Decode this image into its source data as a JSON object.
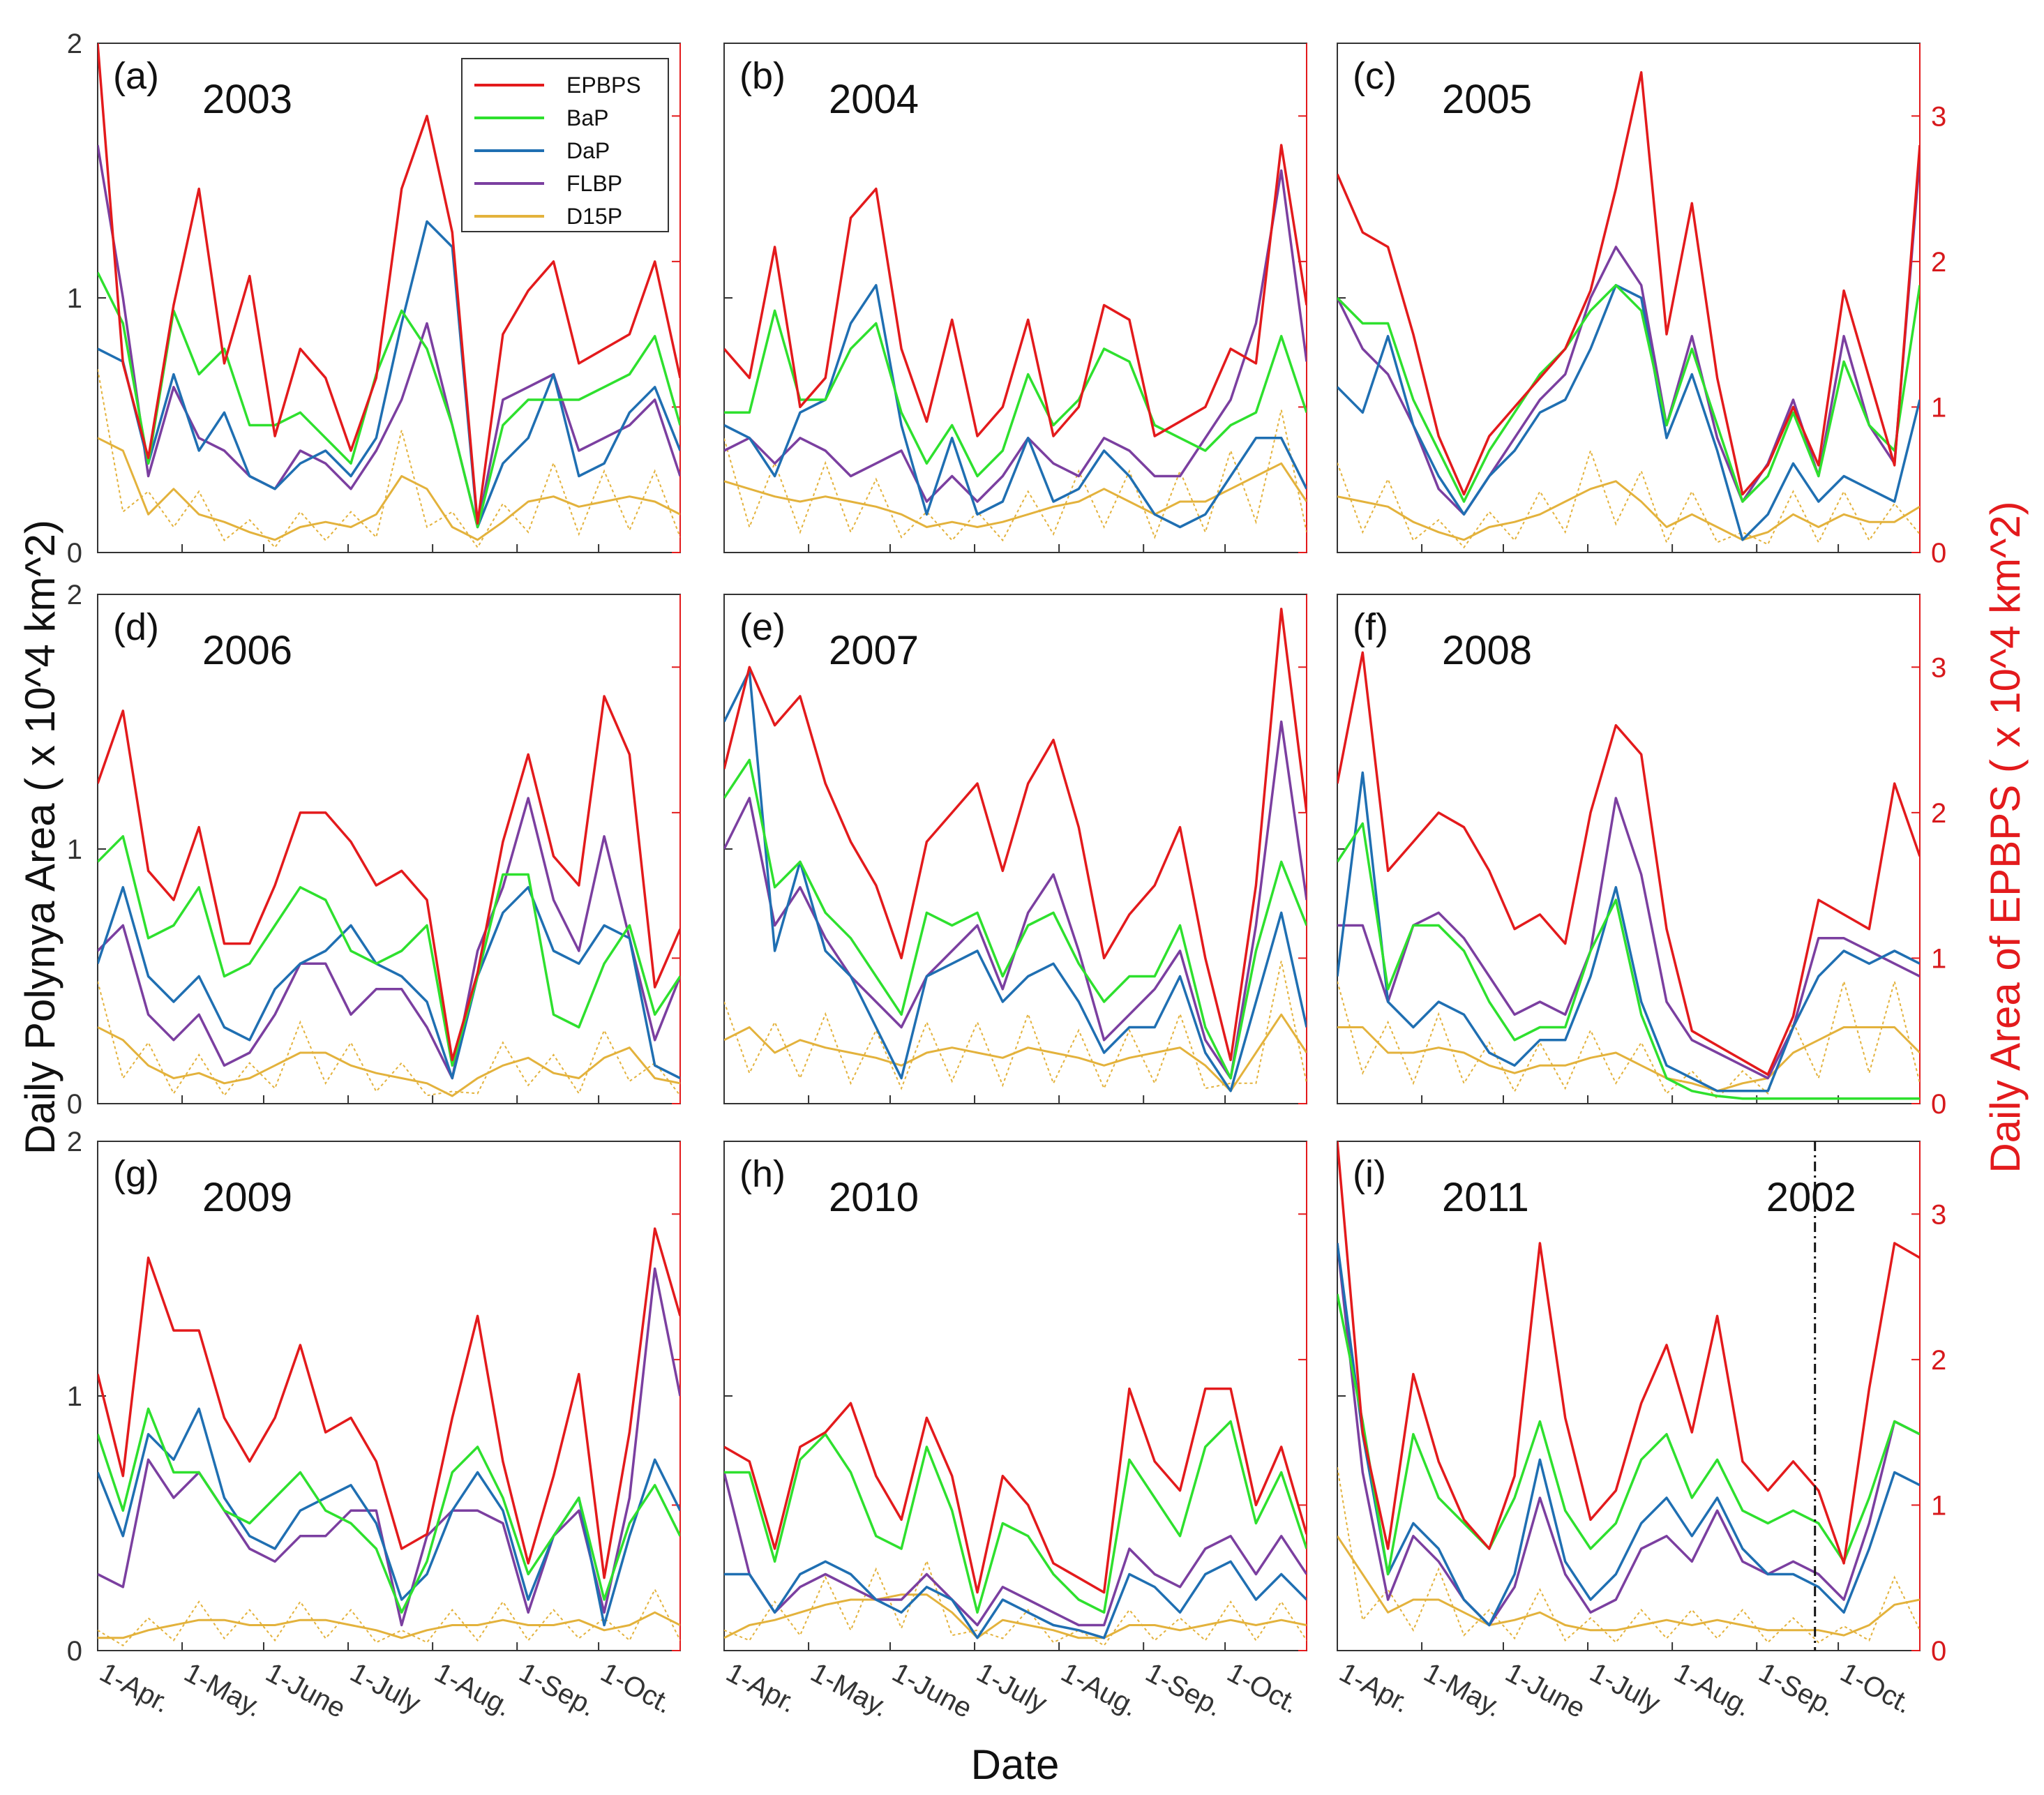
{
  "chart_data": {
    "type": "line",
    "ylabel_left": "Daily Polynya Area ( x 10^4 km^2)",
    "ylabel_right": "Daily Area of EPBPS ( x 10^4 km^2)",
    "xlabel": "Date",
    "ylim_left": [
      0,
      2
    ],
    "ylim_right": [
      0,
      3.5
    ],
    "yticks_left": [
      "0",
      "1",
      "2"
    ],
    "yticks_right": [
      "0",
      "1",
      "2",
      "3"
    ],
    "xtick_labels": [
      "1-Apr.",
      "1-May.",
      "1-June",
      "1-July",
      "1-Aug.",
      "1-Sep.",
      "1-Oct."
    ],
    "legend": [
      {
        "name": "EPBPS",
        "color": "#e31a1c"
      },
      {
        "name": "BaP",
        "color": "#2ee02e"
      },
      {
        "name": "DaP",
        "color": "#1f6fb2"
      },
      {
        "name": "FLBP",
        "color": "#7b3fa0"
      },
      {
        "name": "D15P",
        "color": "#e3b23c"
      }
    ],
    "colors": {
      "EPBPS": "#e31a1c",
      "BaP": "#2ee02e",
      "DaP": "#1f6fb2",
      "FLBP": "#7b3fa0",
      "D15P": "#e3b23c"
    },
    "note": "EPBPS plotted on right axis (x10^4 km^2); other series on left axis. Values sampled every ~10 days from 1 Apr to ~20 Oct.",
    "panels": [
      {
        "letter": "(a)",
        "year": "2003",
        "EPBPS": [
          3.5,
          1.3,
          0.65,
          1.7,
          2.5,
          1.3,
          1.9,
          0.8,
          1.4,
          1.2,
          0.7,
          1.2,
          2.5,
          3.0,
          2.2,
          0.2,
          1.5,
          1.8,
          2.0,
          1.3,
          1.4,
          1.5,
          2.0,
          1.2
        ],
        "BaP": [
          1.1,
          0.9,
          0.35,
          0.95,
          0.7,
          0.8,
          0.5,
          0.5,
          0.55,
          0.45,
          0.35,
          0.7,
          0.95,
          0.8,
          0.5,
          0.1,
          0.5,
          0.6,
          0.6,
          0.6,
          0.65,
          0.7,
          0.85,
          0.5
        ],
        "DaP": [
          0.8,
          0.75,
          0.35,
          0.7,
          0.4,
          0.55,
          0.3,
          0.25,
          0.35,
          0.4,
          0.3,
          0.45,
          0.9,
          1.3,
          1.2,
          0.1,
          0.35,
          0.45,
          0.7,
          0.3,
          0.35,
          0.55,
          0.65,
          0.4
        ],
        "FLBP": [
          1.6,
          1.0,
          0.3,
          0.65,
          0.45,
          0.4,
          0.3,
          0.25,
          0.4,
          0.35,
          0.25,
          0.4,
          0.6,
          0.9,
          0.5,
          0.1,
          0.6,
          0.65,
          0.7,
          0.4,
          0.45,
          0.5,
          0.6,
          0.3
        ],
        "D15P": [
          0.45,
          0.4,
          0.15,
          0.25,
          0.15,
          0.12,
          0.08,
          0.05,
          0.1,
          0.12,
          0.1,
          0.15,
          0.3,
          0.25,
          0.1,
          0.05,
          0.12,
          0.2,
          0.22,
          0.18,
          0.2,
          0.22,
          0.2,
          0.15
        ]
      },
      {
        "letter": "(b)",
        "year": "2004",
        "EPBPS": [
          1.4,
          1.2,
          2.1,
          1.0,
          1.2,
          2.3,
          2.5,
          1.4,
          0.9,
          1.6,
          0.8,
          1.0,
          1.6,
          0.8,
          1.0,
          1.7,
          1.6,
          0.8,
          0.9,
          1.0,
          1.4,
          1.3,
          2.8,
          1.7
        ],
        "BaP": [
          0.55,
          0.55,
          0.95,
          0.6,
          0.6,
          0.8,
          0.9,
          0.55,
          0.35,
          0.5,
          0.3,
          0.4,
          0.7,
          0.5,
          0.6,
          0.8,
          0.75,
          0.5,
          0.45,
          0.4,
          0.5,
          0.55,
          0.85,
          0.55
        ],
        "DaP": [
          0.5,
          0.45,
          0.3,
          0.55,
          0.6,
          0.9,
          1.05,
          0.5,
          0.15,
          0.45,
          0.15,
          0.2,
          0.45,
          0.2,
          0.25,
          0.4,
          0.3,
          0.15,
          0.1,
          0.15,
          0.3,
          0.45,
          0.45,
          0.25
        ],
        "FLBP": [
          0.4,
          0.45,
          0.35,
          0.45,
          0.4,
          0.3,
          0.35,
          0.4,
          0.2,
          0.3,
          0.2,
          0.3,
          0.45,
          0.35,
          0.3,
          0.45,
          0.4,
          0.3,
          0.3,
          0.45,
          0.6,
          0.9,
          1.5,
          0.75
        ],
        "D15P": [
          0.28,
          0.25,
          0.22,
          0.2,
          0.22,
          0.2,
          0.18,
          0.15,
          0.1,
          0.12,
          0.1,
          0.12,
          0.15,
          0.18,
          0.2,
          0.25,
          0.2,
          0.15,
          0.2,
          0.2,
          0.25,
          0.3,
          0.35,
          0.2
        ]
      },
      {
        "letter": "(c)",
        "year": "2005",
        "EPBPS": [
          2.6,
          2.2,
          2.1,
          1.5,
          0.8,
          0.4,
          0.8,
          1.0,
          1.2,
          1.4,
          1.8,
          2.5,
          3.3,
          1.5,
          2.4,
          1.2,
          0.4,
          0.6,
          1.0,
          0.6,
          1.8,
          1.2,
          0.6,
          2.8
        ],
        "BaP": [
          1.0,
          0.9,
          0.9,
          0.6,
          0.4,
          0.2,
          0.4,
          0.55,
          0.7,
          0.8,
          0.95,
          1.05,
          0.95,
          0.5,
          0.8,
          0.5,
          0.2,
          0.3,
          0.55,
          0.3,
          0.75,
          0.5,
          0.4,
          1.05
        ],
        "DaP": [
          0.65,
          0.55,
          0.85,
          0.5,
          0.3,
          0.15,
          0.3,
          0.4,
          0.55,
          0.6,
          0.8,
          1.05,
          1.0,
          0.45,
          0.7,
          0.4,
          0.05,
          0.15,
          0.35,
          0.2,
          0.3,
          0.25,
          0.2,
          0.6
        ],
        "FLBP": [
          1.0,
          0.8,
          0.7,
          0.5,
          0.25,
          0.15,
          0.3,
          0.45,
          0.6,
          0.7,
          1.0,
          1.2,
          1.05,
          0.5,
          0.85,
          0.45,
          0.2,
          0.35,
          0.6,
          0.3,
          0.85,
          0.5,
          0.35,
          1.55
        ],
        "D15P": [
          0.22,
          0.2,
          0.18,
          0.12,
          0.08,
          0.05,
          0.1,
          0.12,
          0.15,
          0.2,
          0.25,
          0.28,
          0.2,
          0.1,
          0.15,
          0.1,
          0.05,
          0.08,
          0.15,
          0.1,
          0.15,
          0.12,
          0.12,
          0.18
        ]
      },
      {
        "letter": "(d)",
        "year": "2006",
        "EPBPS": [
          2.2,
          2.7,
          1.6,
          1.4,
          1.9,
          1.1,
          1.1,
          1.5,
          2.0,
          2.0,
          1.8,
          1.5,
          1.6,
          1.4,
          0.3,
          0.9,
          1.8,
          2.4,
          1.7,
          1.5,
          2.8,
          2.4,
          0.8,
          1.2
        ],
        "BaP": [
          0.95,
          1.05,
          0.65,
          0.7,
          0.85,
          0.5,
          0.55,
          0.7,
          0.85,
          0.8,
          0.6,
          0.55,
          0.6,
          0.7,
          0.15,
          0.5,
          0.9,
          0.9,
          0.35,
          0.3,
          0.55,
          0.7,
          0.35,
          0.5
        ],
        "DaP": [
          0.55,
          0.85,
          0.5,
          0.4,
          0.5,
          0.3,
          0.25,
          0.45,
          0.55,
          0.6,
          0.7,
          0.55,
          0.5,
          0.4,
          0.1,
          0.5,
          0.75,
          0.85,
          0.6,
          0.55,
          0.7,
          0.65,
          0.15,
          0.1
        ],
        "FLBP": [
          0.6,
          0.7,
          0.35,
          0.25,
          0.35,
          0.15,
          0.2,
          0.35,
          0.55,
          0.55,
          0.35,
          0.45,
          0.45,
          0.3,
          0.1,
          0.6,
          0.85,
          1.2,
          0.8,
          0.6,
          1.05,
          0.65,
          0.25,
          0.5
        ],
        "D15P": [
          0.3,
          0.25,
          0.15,
          0.1,
          0.12,
          0.08,
          0.1,
          0.15,
          0.2,
          0.2,
          0.15,
          0.12,
          0.1,
          0.08,
          0.03,
          0.1,
          0.15,
          0.18,
          0.12,
          0.1,
          0.18,
          0.22,
          0.1,
          0.08
        ]
      },
      {
        "letter": "(e)",
        "year": "2007",
        "EPBPS": [
          2.3,
          3.0,
          2.6,
          2.8,
          2.2,
          1.8,
          1.5,
          1.0,
          1.8,
          2.0,
          2.2,
          1.6,
          2.2,
          2.5,
          1.9,
          1.0,
          1.3,
          1.5,
          1.9,
          1.0,
          0.3,
          1.5,
          3.4,
          2.0
        ],
        "BaP": [
          1.2,
          1.35,
          0.85,
          0.95,
          0.75,
          0.65,
          0.5,
          0.35,
          0.75,
          0.7,
          0.75,
          0.5,
          0.7,
          0.75,
          0.55,
          0.4,
          0.5,
          0.5,
          0.7,
          0.3,
          0.1,
          0.6,
          0.95,
          0.7
        ],
        "DaP": [
          1.5,
          1.7,
          0.6,
          0.95,
          0.6,
          0.5,
          0.3,
          0.1,
          0.5,
          0.55,
          0.6,
          0.4,
          0.5,
          0.55,
          0.4,
          0.2,
          0.3,
          0.3,
          0.5,
          0.2,
          0.05,
          0.4,
          0.75,
          0.3
        ],
        "FLBP": [
          1.0,
          1.2,
          0.7,
          0.85,
          0.65,
          0.5,
          0.4,
          0.3,
          0.5,
          0.6,
          0.7,
          0.45,
          0.75,
          0.9,
          0.6,
          0.25,
          0.35,
          0.45,
          0.6,
          0.25,
          0.1,
          0.7,
          1.5,
          0.8
        ],
        "D15P": [
          0.25,
          0.3,
          0.2,
          0.25,
          0.22,
          0.2,
          0.18,
          0.15,
          0.2,
          0.22,
          0.2,
          0.18,
          0.22,
          0.2,
          0.18,
          0.15,
          0.18,
          0.2,
          0.22,
          0.15,
          0.05,
          0.2,
          0.35,
          0.2
        ]
      },
      {
        "letter": "(f)",
        "year": "2008",
        "EPBPS": [
          2.2,
          3.1,
          1.6,
          1.8,
          2.0,
          1.9,
          1.6,
          1.2,
          1.3,
          1.1,
          2.0,
          2.6,
          2.4,
          1.2,
          0.5,
          0.4,
          0.3,
          0.2,
          0.6,
          1.4,
          1.3,
          1.2,
          2.2,
          1.7
        ],
        "BaP": [
          0.95,
          1.1,
          0.45,
          0.7,
          0.7,
          0.6,
          0.4,
          0.25,
          0.3,
          0.3,
          0.6,
          0.8,
          0.35,
          0.1,
          0.05,
          0.03,
          0.02,
          0.02,
          0.02,
          0.02,
          0.02,
          0.02,
          0.02,
          0.02
        ],
        "DaP": [
          0.5,
          1.3,
          0.4,
          0.3,
          0.4,
          0.35,
          0.2,
          0.15,
          0.25,
          0.25,
          0.5,
          0.85,
          0.4,
          0.15,
          0.1,
          0.05,
          0.05,
          0.05,
          0.3,
          0.5,
          0.6,
          0.55,
          0.6,
          0.55
        ],
        "FLBP": [
          0.7,
          0.7,
          0.4,
          0.7,
          0.75,
          0.65,
          0.5,
          0.35,
          0.4,
          0.35,
          0.6,
          1.2,
          0.9,
          0.4,
          0.25,
          0.2,
          0.15,
          0.1,
          0.3,
          0.65,
          0.65,
          0.6,
          0.55,
          0.5
        ],
        "D15P": [
          0.3,
          0.3,
          0.2,
          0.2,
          0.22,
          0.2,
          0.15,
          0.12,
          0.15,
          0.15,
          0.18,
          0.2,
          0.15,
          0.1,
          0.08,
          0.05,
          0.08,
          0.1,
          0.2,
          0.25,
          0.3,
          0.3,
          0.3,
          0.2
        ]
      },
      {
        "letter": "(g)",
        "year": "2009",
        "EPBPS": [
          1.9,
          1.2,
          2.7,
          2.2,
          2.2,
          1.6,
          1.3,
          1.6,
          2.1,
          1.5,
          1.6,
          1.3,
          0.7,
          0.8,
          1.6,
          2.3,
          1.3,
          0.6,
          1.2,
          1.9,
          0.5,
          1.5,
          2.9,
          2.3
        ],
        "BaP": [
          0.85,
          0.55,
          0.95,
          0.7,
          0.7,
          0.55,
          0.5,
          0.6,
          0.7,
          0.55,
          0.5,
          0.4,
          0.15,
          0.35,
          0.7,
          0.8,
          0.6,
          0.3,
          0.45,
          0.6,
          0.2,
          0.5,
          0.65,
          0.45
        ],
        "DaP": [
          0.7,
          0.45,
          0.85,
          0.75,
          0.95,
          0.6,
          0.45,
          0.4,
          0.55,
          0.6,
          0.65,
          0.5,
          0.2,
          0.3,
          0.55,
          0.7,
          0.55,
          0.2,
          0.45,
          0.6,
          0.1,
          0.45,
          0.75,
          0.55
        ],
        "FLBP": [
          0.3,
          0.25,
          0.75,
          0.6,
          0.7,
          0.55,
          0.4,
          0.35,
          0.45,
          0.45,
          0.55,
          0.55,
          0.1,
          0.45,
          0.55,
          0.55,
          0.5,
          0.15,
          0.45,
          0.55,
          0.15,
          0.6,
          1.5,
          1.0
        ],
        "D15P": [
          0.05,
          0.05,
          0.08,
          0.1,
          0.12,
          0.12,
          0.1,
          0.1,
          0.12,
          0.12,
          0.1,
          0.08,
          0.05,
          0.08,
          0.1,
          0.1,
          0.12,
          0.1,
          0.1,
          0.12,
          0.08,
          0.1,
          0.15,
          0.1
        ]
      },
      {
        "letter": "(h)",
        "year": "2010",
        "EPBPS": [
          1.4,
          1.3,
          0.7,
          1.4,
          1.5,
          1.7,
          1.2,
          0.9,
          1.6,
          1.2,
          0.4,
          1.2,
          1.0,
          0.6,
          0.5,
          0.4,
          1.8,
          1.3,
          1.1,
          1.8,
          1.8,
          1.0,
          1.4,
          0.8
        ],
        "BaP": [
          0.7,
          0.7,
          0.35,
          0.75,
          0.85,
          0.7,
          0.45,
          0.4,
          0.8,
          0.55,
          0.15,
          0.5,
          0.45,
          0.3,
          0.2,
          0.15,
          0.75,
          0.6,
          0.45,
          0.8,
          0.9,
          0.5,
          0.7,
          0.4
        ],
        "DaP": [
          0.3,
          0.3,
          0.15,
          0.3,
          0.35,
          0.3,
          0.2,
          0.15,
          0.25,
          0.2,
          0.05,
          0.2,
          0.15,
          0.1,
          0.08,
          0.05,
          0.3,
          0.25,
          0.15,
          0.3,
          0.35,
          0.2,
          0.3,
          0.2
        ],
        "FLBP": [
          0.7,
          0.3,
          0.15,
          0.25,
          0.3,
          0.25,
          0.2,
          0.2,
          0.3,
          0.2,
          0.1,
          0.25,
          0.2,
          0.15,
          0.1,
          0.1,
          0.4,
          0.3,
          0.25,
          0.4,
          0.45,
          0.3,
          0.45,
          0.3
        ],
        "D15P": [
          0.05,
          0.1,
          0.12,
          0.15,
          0.18,
          0.2,
          0.2,
          0.22,
          0.22,
          0.15,
          0.05,
          0.12,
          0.1,
          0.08,
          0.05,
          0.05,
          0.1,
          0.1,
          0.08,
          0.1,
          0.12,
          0.1,
          0.12,
          0.1
        ]
      },
      {
        "letter": "(i)",
        "year": "2011",
        "EPBPS": [
          3.5,
          1.5,
          0.7,
          1.9,
          1.3,
          0.9,
          0.7,
          1.2,
          2.8,
          1.6,
          0.9,
          1.1,
          1.7,
          2.1,
          1.5,
          2.3,
          1.3,
          1.1,
          1.3,
          1.1,
          0.6,
          1.8,
          2.8,
          2.7
        ],
        "BaP": [
          1.4,
          0.9,
          0.3,
          0.85,
          0.6,
          0.5,
          0.4,
          0.6,
          0.9,
          0.55,
          0.4,
          0.5,
          0.75,
          0.85,
          0.6,
          0.75,
          0.55,
          0.5,
          0.55,
          0.5,
          0.35,
          0.6,
          0.9,
          0.85
        ],
        "DaP": [
          1.6,
          0.85,
          0.3,
          0.5,
          0.4,
          0.2,
          0.1,
          0.3,
          0.75,
          0.35,
          0.2,
          0.3,
          0.5,
          0.6,
          0.45,
          0.6,
          0.4,
          0.3,
          0.3,
          0.25,
          0.15,
          0.4,
          0.7,
          0.65
        ],
        "FLBP": [
          1.6,
          0.7,
          0.2,
          0.45,
          0.35,
          0.2,
          0.1,
          0.25,
          0.6,
          0.3,
          0.15,
          0.2,
          0.4,
          0.45,
          0.35,
          0.55,
          0.35,
          0.3,
          0.35,
          0.3,
          0.2,
          0.5,
          0.9,
          0.85
        ],
        "D15P": [
          0.45,
          0.3,
          0.15,
          0.2,
          0.2,
          0.15,
          0.1,
          0.12,
          0.15,
          0.1,
          0.08,
          0.08,
          0.1,
          0.12,
          0.1,
          0.12,
          0.1,
          0.08,
          0.08,
          0.08,
          0.06,
          0.1,
          0.18,
          0.2
        ],
        "marker_label": "2002",
        "marker_fraction": 0.82
      }
    ]
  }
}
